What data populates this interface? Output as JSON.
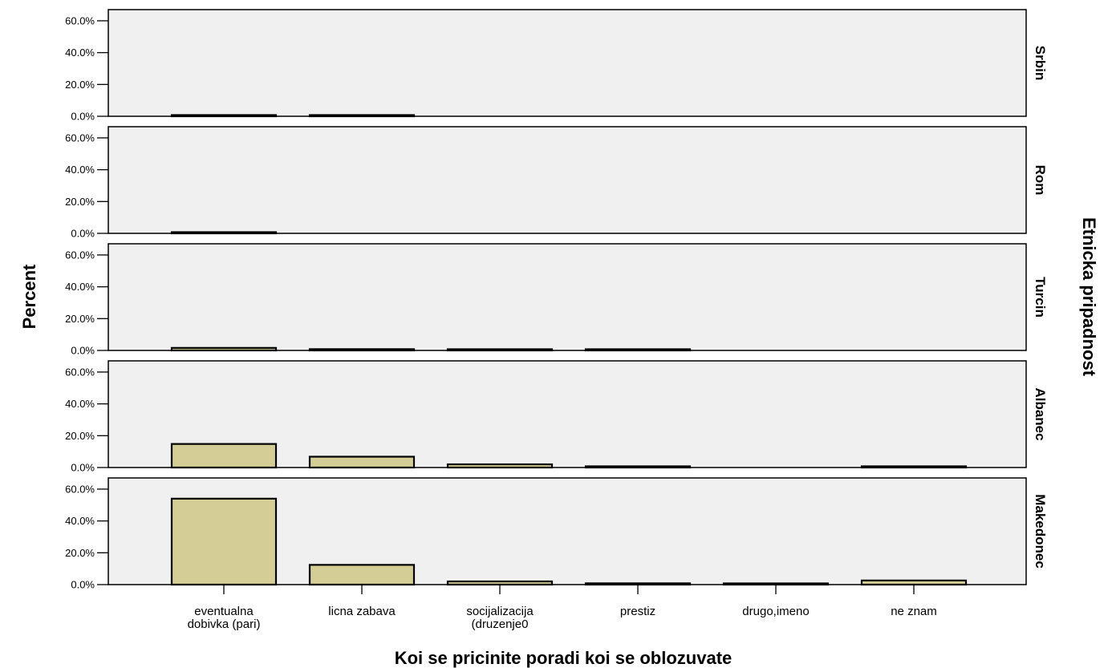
{
  "chart_data": {
    "type": "bar",
    "xlabel": "Koi se pricinite poradi koi se oblozuvate",
    "ylabel": "Percent",
    "facet_label": "Etnicka pripadnost",
    "categories": [
      "eventualna dobivka (pari)",
      "licna zabava",
      "socijalizacija (druzenje0",
      "prestiz",
      "drugo,imeno",
      "ne znam"
    ],
    "category_lines": [
      [
        "eventualna",
        "dobivka (pari)"
      ],
      [
        "licna zabava"
      ],
      [
        "socijalizacija",
        "(druzenje0"
      ],
      [
        "prestiz"
      ],
      [
        "drugo,imeno"
      ],
      [
        "ne znam"
      ]
    ],
    "y_ticks": [
      "0.0%",
      "20.0%",
      "40.0%",
      "60.0%"
    ],
    "ylim": [
      0,
      64
    ],
    "grid": false,
    "colors": {
      "bar_fill": "#d4cd96",
      "bar_stroke": "#000000",
      "panel_bg": "#f0f0f0"
    },
    "panels": [
      {
        "name": "Srbin",
        "values": [
          0.5,
          0.3,
          0,
          0,
          0,
          0
        ]
      },
      {
        "name": "Rom",
        "values": [
          0.3,
          0,
          0,
          0,
          0,
          0
        ]
      },
      {
        "name": "Turcin",
        "values": [
          1.6,
          0.8,
          0.2,
          0.2,
          0,
          0
        ]
      },
      {
        "name": "Albanec",
        "values": [
          14.8,
          6.8,
          2.0,
          0.3,
          0,
          0.6
        ]
      },
      {
        "name": "Makedonec",
        "values": [
          54.0,
          12.4,
          2.0,
          0.8,
          0.2,
          2.6
        ]
      }
    ]
  }
}
